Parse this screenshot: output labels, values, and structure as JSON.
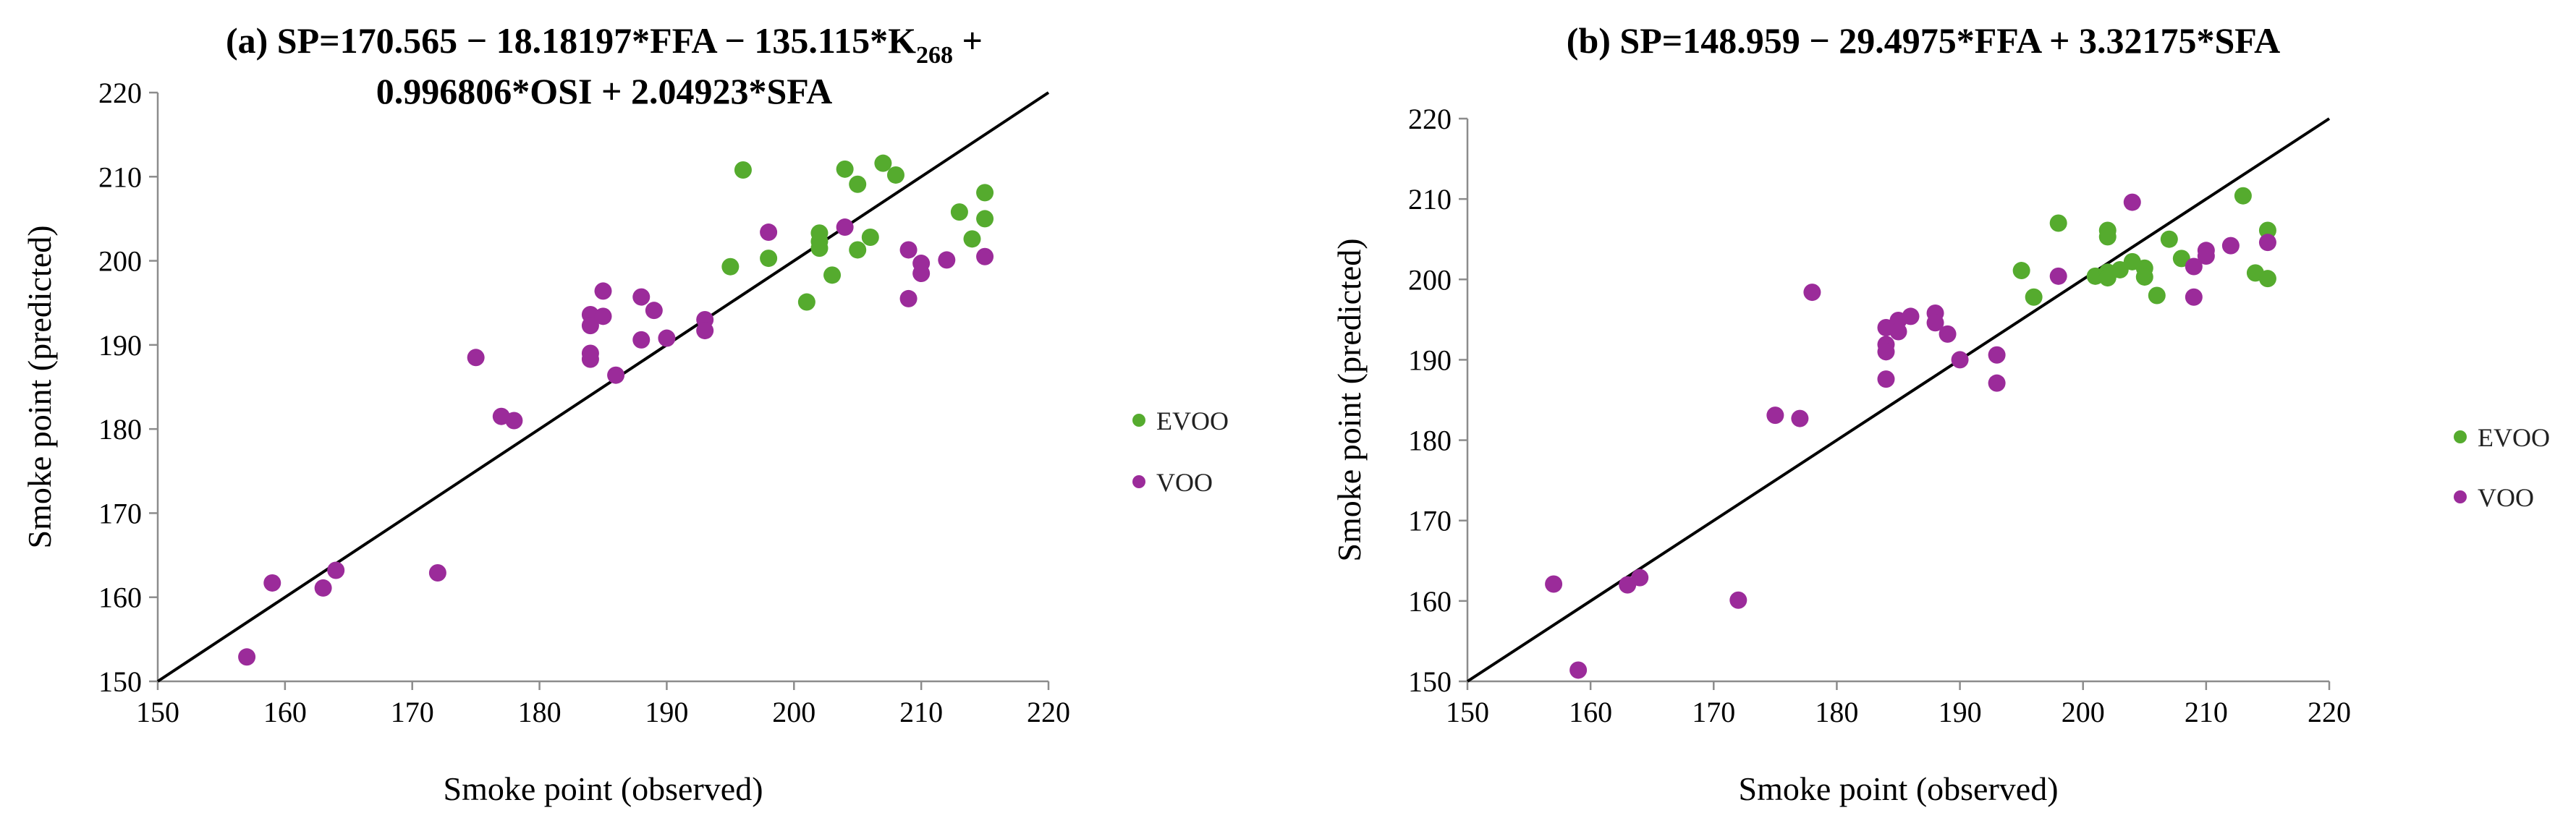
{
  "colors": {
    "evoo": "#55ab2e",
    "voo": "#9b2b9a",
    "axis": "#8c8c8c",
    "line": "#000000"
  },
  "chart_data": [
    {
      "id": "a",
      "type": "scatter",
      "title_lines": [
        [
          "(a) SP=170.565 − 18.18197*FFA − 135.115*K",
          "268",
          " +"
        ],
        [
          "0.996806*OSI + 2.04923*SFA"
        ]
      ],
      "xlabel": "Smoke point (observed)",
      "ylabel": "Smoke point (predicted)",
      "xlim": [
        150,
        220
      ],
      "ylim": [
        150,
        220
      ],
      "xticks": [
        150,
        160,
        170,
        180,
        190,
        200,
        210,
        220
      ],
      "yticks": [
        150,
        160,
        170,
        180,
        190,
        200,
        210,
        220
      ],
      "reference_line": [
        [
          150,
          150
        ],
        [
          220,
          220
        ]
      ],
      "legend": [
        "EVOO",
        "VOO"
      ],
      "legend_position": "right",
      "series": [
        {
          "name": "EVOO",
          "points": [
            [
              196,
              210.8
            ],
            [
              195,
              199.3
            ],
            [
              198,
              200.3
            ],
            [
              201,
              195.1
            ],
            [
              202,
              203.3
            ],
            [
              202,
              202.3
            ],
            [
              202,
              201.5
            ],
            [
              203,
              198.3
            ],
            [
              204,
              210.9
            ],
            [
              205,
              209.1
            ],
            [
              205,
              201.3
            ],
            [
              206,
              202.8
            ],
            [
              207,
              211.6
            ],
            [
              208,
              210.2
            ],
            [
              213,
              205.8
            ],
            [
              214,
              202.6
            ],
            [
              215,
              208.1
            ],
            [
              215,
              205.0
            ]
          ]
        },
        {
          "name": "VOO",
          "points": [
            [
              157,
              152.9
            ],
            [
              159,
              161.7
            ],
            [
              163,
              161.1
            ],
            [
              164,
              163.2
            ],
            [
              172,
              162.9
            ],
            [
              175,
              188.5
            ],
            [
              177,
              181.5
            ],
            [
              178,
              181.0
            ],
            [
              184,
              193.6
            ],
            [
              184,
              192.3
            ],
            [
              184,
              189.0
            ],
            [
              184,
              188.3
            ],
            [
              185,
              196.4
            ],
            [
              185,
              193.4
            ],
            [
              186,
              186.4
            ],
            [
              188,
              195.7
            ],
            [
              188,
              190.6
            ],
            [
              189,
              194.1
            ],
            [
              190,
              190.8
            ],
            [
              193,
              193.0
            ],
            [
              193,
              191.7
            ],
            [
              198,
              203.4
            ],
            [
              204,
              204.0
            ],
            [
              209,
              201.3
            ],
            [
              209,
              195.5
            ],
            [
              210,
              199.7
            ],
            [
              210,
              198.5
            ],
            [
              212,
              200.1
            ],
            [
              215,
              200.5
            ]
          ]
        }
      ]
    },
    {
      "id": "b",
      "type": "scatter",
      "title_lines": [
        [
          "(b) SP=148.959 − 29.4975*FFA + 3.32175*SFA"
        ]
      ],
      "xlabel": "Smoke point (observed)",
      "ylabel": "Smoke point (predicted)",
      "xlim": [
        150,
        220
      ],
      "ylim": [
        150,
        220
      ],
      "xticks": [
        150,
        160,
        170,
        180,
        190,
        200,
        210,
        220
      ],
      "yticks": [
        150,
        160,
        170,
        180,
        190,
        200,
        210,
        220
      ],
      "reference_line": [
        [
          150,
          150
        ],
        [
          220,
          220
        ]
      ],
      "legend": [
        "EVOO",
        "VOO"
      ],
      "legend_position": "right",
      "series": [
        {
          "name": "EVOO",
          "points": [
            [
              195,
              201.1
            ],
            [
              196,
              197.8
            ],
            [
              198,
              207.0
            ],
            [
              201,
              200.4
            ],
            [
              202,
              206.1
            ],
            [
              202,
              205.3
            ],
            [
              202,
              200.9
            ],
            [
              202,
              200.2
            ],
            [
              203,
              201.2
            ],
            [
              204,
              202.2
            ],
            [
              205,
              201.4
            ],
            [
              205,
              200.3
            ],
            [
              206,
              198.0
            ],
            [
              207,
              205.0
            ],
            [
              208,
              202.6
            ],
            [
              213,
              210.4
            ],
            [
              214,
              200.8
            ],
            [
              215,
              206.1
            ],
            [
              215,
              200.1
            ]
          ]
        },
        {
          "name": "VOO",
          "points": [
            [
              157,
              162.1
            ],
            [
              159,
              151.4
            ],
            [
              163,
              162.0
            ],
            [
              164,
              162.9
            ],
            [
              172,
              160.1
            ],
            [
              175,
              183.1
            ],
            [
              177,
              182.7
            ],
            [
              178,
              198.4
            ],
            [
              184,
              194.0
            ],
            [
              184,
              191.9
            ],
            [
              184,
              191.0
            ],
            [
              184,
              187.6
            ],
            [
              185,
              194.9
            ],
            [
              185,
              193.5
            ],
            [
              186,
              195.4
            ],
            [
              188,
              195.8
            ],
            [
              188,
              194.6
            ],
            [
              189,
              193.2
            ],
            [
              190,
              190.0
            ],
            [
              193,
              190.6
            ],
            [
              193,
              187.1
            ],
            [
              198,
              200.4
            ],
            [
              204,
              209.6
            ],
            [
              209,
              201.6
            ],
            [
              209,
              197.8
            ],
            [
              210,
              203.6
            ],
            [
              210,
              202.9
            ],
            [
              212,
              204.2
            ],
            [
              215,
              204.6
            ]
          ]
        }
      ]
    }
  ]
}
